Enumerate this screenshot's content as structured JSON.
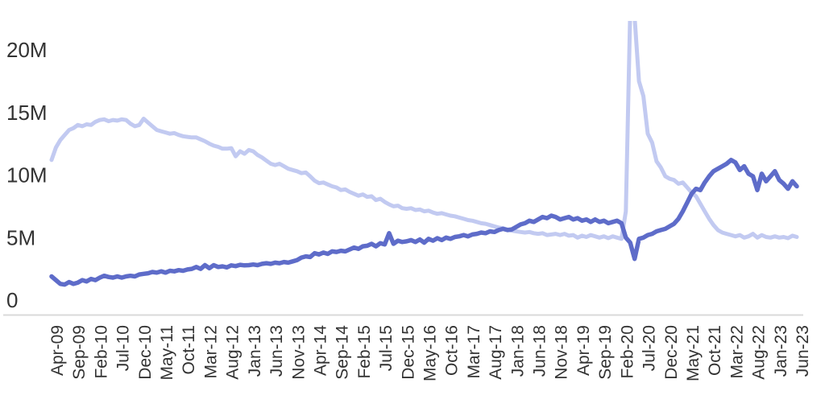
{
  "chart_data": {
    "type": "line",
    "title": "",
    "xlabel": "",
    "ylabel": "",
    "frequency": "monthly",
    "x_start": "Apr-09",
    "x_end": "Jun-23",
    "y_unit": "millions",
    "ylim": [
      0,
      22.3
    ],
    "grid": false,
    "legend": "none",
    "y_ticks": [
      {
        "label": "0",
        "value": 0
      },
      {
        "label": "5M",
        "value": 5
      },
      {
        "label": "10M",
        "value": 10
      },
      {
        "label": "15M",
        "value": 15
      },
      {
        "label": "20M",
        "value": 20
      }
    ],
    "x_tick_labels": [
      "Apr-09",
      "Sep-09",
      "Feb-10",
      "Jul-10",
      "Dec-10",
      "May-11",
      "Oct-11",
      "Mar-12",
      "Aug-12",
      "Jan-13",
      "Jun-13",
      "Nov-13",
      "Apr-14",
      "Sep-14",
      "Feb-15",
      "Jul-15",
      "Dec-15",
      "May-16",
      "Oct-16",
      "Mar-17",
      "Aug-17",
      "Jan-18",
      "Jun-18",
      "Nov-18",
      "Apr-19",
      "Sep-19",
      "Feb-20",
      "Jul-20",
      "Dec-20",
      "May-21",
      "Oct-21",
      "Mar-22",
      "Aug-22",
      "Jan-23",
      "Jun-23"
    ],
    "x_tick_every_n_months": 5,
    "series": [
      {
        "name": "light-series",
        "color": "#c2caf1",
        "values_millions": [
          11.2,
          12.2,
          12.8,
          13.2,
          13.6,
          13.75,
          14.0,
          13.9,
          14.05,
          14.0,
          14.25,
          14.4,
          14.45,
          14.3,
          14.4,
          14.35,
          14.45,
          14.4,
          14.1,
          13.9,
          14.0,
          14.5,
          14.2,
          13.9,
          13.6,
          13.5,
          13.4,
          13.3,
          13.35,
          13.2,
          13.1,
          13.05,
          13.0,
          13.0,
          12.85,
          12.7,
          12.5,
          12.35,
          12.25,
          12.1,
          12.1,
          12.15,
          11.5,
          11.9,
          11.7,
          12.0,
          11.9,
          11.6,
          11.4,
          11.15,
          10.9,
          10.8,
          10.9,
          10.7,
          10.5,
          10.4,
          10.3,
          10.15,
          10.2,
          9.9,
          9.55,
          9.35,
          9.4,
          9.25,
          9.1,
          9.0,
          8.8,
          8.85,
          8.65,
          8.5,
          8.35,
          8.45,
          8.25,
          8.3,
          8.0,
          8.1,
          7.85,
          7.65,
          7.5,
          7.55,
          7.35,
          7.3,
          7.35,
          7.2,
          7.25,
          7.1,
          7.15,
          7.0,
          6.9,
          6.95,
          6.85,
          6.75,
          6.7,
          6.6,
          6.5,
          6.4,
          6.35,
          6.25,
          6.15,
          6.1,
          6.0,
          5.9,
          5.8,
          5.75,
          5.65,
          5.55,
          5.5,
          5.45,
          5.4,
          5.45,
          5.35,
          5.3,
          5.35,
          5.2,
          5.25,
          5.3,
          5.2,
          5.3,
          5.15,
          5.2,
          5.0,
          5.15,
          5.05,
          5.2,
          5.1,
          5.0,
          5.1,
          4.95,
          5.1,
          5.0,
          4.9,
          7.1,
          23.0,
          22.6,
          17.5,
          16.3,
          13.3,
          12.6,
          11.1,
          10.6,
          9.9,
          9.7,
          9.6,
          9.3,
          9.4,
          9.0,
          8.6,
          8.3,
          7.7,
          7.1,
          6.5,
          6.0,
          5.6,
          5.4,
          5.3,
          5.2,
          5.1,
          5.2,
          5.0,
          5.1,
          5.3,
          5.0,
          5.2,
          5.05,
          5.0,
          5.1,
          5.0,
          5.05,
          4.95,
          5.15,
          5.05
        ]
      },
      {
        "name": "dark-series",
        "color": "#5e6cc9",
        "values_millions": [
          1.9,
          1.6,
          1.3,
          1.25,
          1.45,
          1.3,
          1.4,
          1.6,
          1.5,
          1.7,
          1.6,
          1.8,
          1.95,
          1.85,
          1.8,
          1.9,
          1.8,
          1.9,
          1.95,
          1.9,
          2.05,
          2.1,
          2.15,
          2.25,
          2.2,
          2.3,
          2.2,
          2.35,
          2.3,
          2.4,
          2.35,
          2.45,
          2.5,
          2.65,
          2.5,
          2.8,
          2.55,
          2.8,
          2.65,
          2.7,
          2.62,
          2.78,
          2.72,
          2.82,
          2.78,
          2.8,
          2.85,
          2.8,
          2.9,
          2.95,
          2.9,
          3.0,
          2.95,
          3.05,
          3.0,
          3.1,
          3.2,
          3.4,
          3.5,
          3.45,
          3.75,
          3.65,
          3.8,
          3.7,
          3.9,
          3.85,
          3.95,
          3.9,
          4.05,
          4.2,
          4.1,
          4.3,
          4.35,
          4.5,
          4.3,
          4.55,
          4.45,
          5.35,
          4.5,
          4.75,
          4.65,
          4.7,
          4.8,
          4.65,
          4.85,
          4.6,
          4.9,
          4.75,
          4.95,
          4.8,
          5.0,
          4.9,
          5.05,
          5.1,
          5.2,
          5.1,
          5.25,
          5.3,
          5.4,
          5.35,
          5.5,
          5.45,
          5.6,
          5.7,
          5.6,
          5.65,
          5.85,
          6.05,
          6.15,
          6.35,
          6.25,
          6.45,
          6.65,
          6.55,
          6.75,
          6.65,
          6.45,
          6.55,
          6.65,
          6.45,
          6.55,
          6.35,
          6.45,
          6.25,
          6.45,
          6.25,
          6.35,
          6.15,
          6.25,
          6.35,
          6.15,
          5.0,
          4.6,
          3.3,
          4.9,
          5.0,
          5.2,
          5.3,
          5.5,
          5.6,
          5.7,
          5.9,
          6.1,
          6.5,
          7.1,
          7.8,
          8.5,
          8.9,
          8.8,
          9.4,
          9.9,
          10.3,
          10.5,
          10.7,
          10.9,
          11.2,
          11.0,
          10.4,
          10.7,
          10.1,
          9.9,
          8.8,
          10.1,
          9.5,
          9.9,
          10.3,
          9.6,
          9.3,
          8.9,
          9.5,
          9.1
        ]
      }
    ],
    "colors": {
      "axis_line": "#d9d9d9",
      "tick_text": "#333333",
      "background": "#ffffff"
    }
  }
}
